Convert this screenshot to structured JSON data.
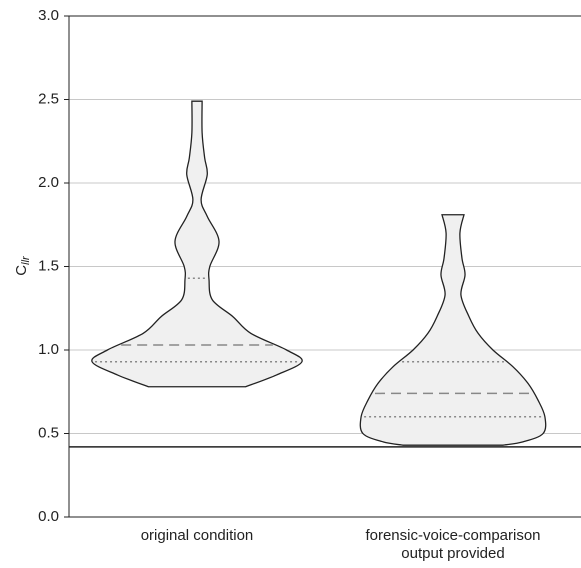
{
  "chart_data": {
    "type": "violin",
    "y_label": "C",
    "y_label_sub": "llr",
    "categories": [
      [
        "original condition"
      ],
      [
        "forensic-voice-comparison",
        "output provided"
      ]
    ],
    "ylim": [
      0,
      3
    ],
    "yticks": [
      {
        "value": 0,
        "label": "0.0"
      },
      0.5,
      {
        "value": 1,
        "label": "1.0"
      },
      1.5,
      {
        "value": 2,
        "label": "2.0"
      },
      2.5,
      {
        "value": 3,
        "label": "3.0"
      }
    ],
    "grid": true,
    "reference_line": 0.42,
    "color": "#f0f0f0",
    "violins": [
      {
        "q1": 0.93,
        "median": 1.03,
        "q3": 1.43,
        "profile": {
          "y": [
            0.78,
            0.85,
            0.93,
            1.0,
            1.1,
            1.2,
            1.3,
            1.42,
            1.5,
            1.65,
            1.8,
            1.9,
            2.05,
            2.15,
            2.3,
            2.49
          ],
          "half_width": [
            0.19,
            0.31,
            0.41,
            0.35,
            0.21,
            0.14,
            0.06,
            0.047,
            0.05,
            0.086,
            0.04,
            0.016,
            0.04,
            0.03,
            0.02,
            0.02
          ]
        }
      },
      {
        "q1": 0.6,
        "median": 0.74,
        "q3": 0.93,
        "profile": {
          "y": [
            0.43,
            0.45,
            0.5,
            0.6,
            0.7,
            0.8,
            0.9,
            1.0,
            1.1,
            1.2,
            1.33,
            1.45,
            1.55,
            1.7,
            1.81
          ],
          "half_width": [
            0.195,
            0.273,
            0.352,
            0.359,
            0.332,
            0.293,
            0.234,
            0.156,
            0.098,
            0.0625,
            0.031,
            0.047,
            0.035,
            0.027,
            0.043
          ]
        }
      }
    ]
  }
}
